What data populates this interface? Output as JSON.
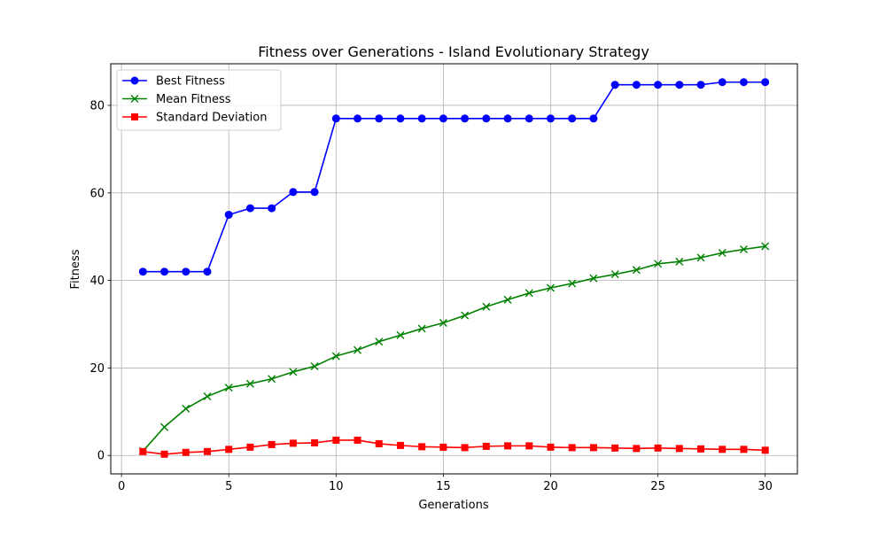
{
  "chart_data": {
    "type": "line",
    "title": "Fitness over Generations - Island Evolutionary Strategy",
    "xlabel": "Generations",
    "ylabel": "Fitness",
    "xlim": [
      -0.5,
      31.5
    ],
    "ylim": [
      -4.2,
      89.5
    ],
    "xticks": [
      0,
      5,
      10,
      15,
      20,
      25,
      30
    ],
    "yticks": [
      0,
      20,
      40,
      60,
      80
    ],
    "grid": true,
    "legend_position": "upper-left",
    "x": [
      1,
      2,
      3,
      4,
      5,
      6,
      7,
      8,
      9,
      10,
      11,
      12,
      13,
      14,
      15,
      16,
      17,
      18,
      19,
      20,
      21,
      22,
      23,
      24,
      25,
      26,
      27,
      28,
      29,
      30
    ],
    "series": [
      {
        "name": "Best Fitness",
        "color": "#0000ff",
        "marker": "circle",
        "values": [
          42,
          42,
          42,
          42,
          55,
          56.5,
          56.5,
          60.2,
          60.2,
          77,
          77,
          77,
          77,
          77,
          77,
          77,
          77,
          77,
          77,
          77,
          77,
          77,
          84.7,
          84.7,
          84.7,
          84.7,
          84.7,
          85.3,
          85.3,
          85.3
        ]
      },
      {
        "name": "Mean Fitness",
        "color": "#008000",
        "marker": "x",
        "values": [
          1,
          6.5,
          10.7,
          13.5,
          15.5,
          16.4,
          17.5,
          19.1,
          20.4,
          22.7,
          24.1,
          26,
          27.5,
          29,
          30.3,
          32,
          34,
          35.6,
          37.1,
          38.3,
          39.3,
          40.5,
          41.4,
          42.4,
          43.8,
          44.3,
          45.2,
          46.3,
          47.1,
          47.8
        ]
      },
      {
        "name": "Standard Deviation",
        "color": "#ff0000",
        "marker": "square",
        "values": [
          0.9,
          0.3,
          0.7,
          0.9,
          1.4,
          1.9,
          2.5,
          2.8,
          2.9,
          3.5,
          3.5,
          2.7,
          2.3,
          2,
          1.9,
          1.8,
          2.1,
          2.2,
          2.2,
          1.9,
          1.8,
          1.8,
          1.7,
          1.6,
          1.7,
          1.6,
          1.5,
          1.4,
          1.4,
          1.2
        ]
      }
    ]
  }
}
